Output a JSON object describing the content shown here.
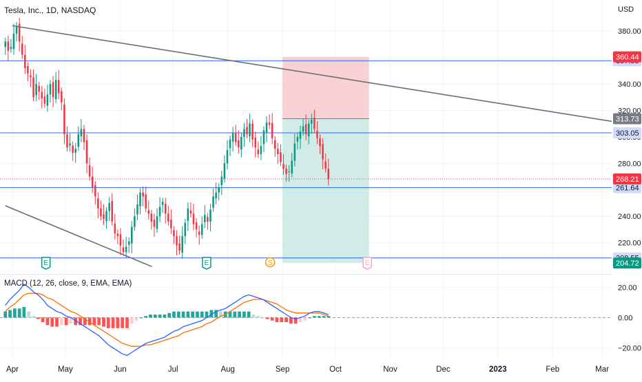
{
  "chart_data": {
    "type": "candlestick",
    "title": "Tesla, Inc., 1D, NASDAQ",
    "currency": "USD",
    "price_axis": {
      "ylim": [
        198,
        392
      ],
      "ticks": [
        220,
        240,
        260,
        280,
        300,
        320,
        340,
        360,
        380
      ],
      "tick_labels": [
        "220.00",
        "240.00",
        "260.00",
        "280.00",
        "300.00",
        "320.00",
        "340.00",
        "360.00",
        "380.00"
      ]
    },
    "time_axis": {
      "labels": [
        "Apr",
        "May",
        "Jun",
        "Jul",
        "Aug",
        "Sep",
        "Oct",
        "Nov",
        "Dec",
        "2023",
        "Feb",
        "Mar"
      ]
    },
    "horizontal_levels": [
      {
        "value": 357.55,
        "label": "357.55",
        "color": "#2962ff"
      },
      {
        "value": 303.05,
        "label": "303.05",
        "color": "#2962ff"
      },
      {
        "value": 261.64,
        "label": "261.64",
        "color": "#2962ff"
      },
      {
        "value": 208.55,
        "label": "208.55",
        "color": "#2962ff"
      }
    ],
    "price_badges": [
      {
        "value": 360.44,
        "label": "360.44",
        "color": "#f23645"
      },
      {
        "value": 313.73,
        "label": "313.73",
        "color": "#787b86"
      },
      {
        "value": 268.21,
        "label": "268.21",
        "color": "#f23645"
      },
      {
        "value": 204.72,
        "label": "204.72",
        "color": "#089981"
      }
    ],
    "last_price": 268.21,
    "short_position": {
      "entry": 313.73,
      "stop": 360.44,
      "target": 204.72,
      "from": "Sep 1",
      "to": "Oct 20",
      "stop_color": "#f7c9cd",
      "target_color": "#c9e9e3"
    },
    "trendlines": [
      {
        "from": [
          "Apr 1",
          384
        ],
        "to": [
          "Oct 20",
          341
        ]
      },
      {
        "from": [
          "Mar 28",
          248
        ],
        "to": [
          "Jun 19",
          202
        ]
      }
    ],
    "event_markers": [
      {
        "label": "E",
        "date": "Apr 20",
        "color": "#089981"
      },
      {
        "label": "E",
        "date": "Jul 20",
        "color": "#089981"
      },
      {
        "label": "S",
        "date": "Aug 25",
        "color": "#ff9800"
      },
      {
        "label": "E",
        "date": "Oct 19",
        "color": "#f7a5bd"
      }
    ],
    "up_color": "#089981",
    "down_color": "#f23645",
    "closes": [
      372,
      365,
      368,
      378,
      384,
      372,
      362,
      352,
      348,
      345,
      330,
      340,
      334,
      329,
      325,
      332,
      340,
      330,
      343,
      333,
      326,
      302,
      292,
      295,
      288,
      291,
      302,
      306,
      296,
      280,
      270,
      262,
      255,
      246,
      240,
      238,
      244,
      250,
      236,
      227,
      225,
      218,
      213,
      217,
      221,
      232,
      240,
      249,
      258,
      255,
      246,
      242,
      236,
      232,
      240,
      247,
      251,
      242,
      236,
      231,
      225,
      218,
      214,
      225,
      235,
      246,
      242,
      234,
      230,
      226,
      234,
      241,
      236,
      245,
      255,
      258,
      262,
      270,
      280,
      290,
      298,
      303,
      296,
      292,
      300,
      306,
      302,
      310,
      298,
      292,
      287,
      293,
      305,
      311,
      309,
      299,
      291,
      287,
      281,
      276,
      272,
      274,
      282,
      295,
      300,
      304,
      308,
      302,
      310,
      313,
      306,
      299,
      293,
      283,
      276,
      268
    ],
    "macd": {
      "ylim": [
        -28,
        27
      ],
      "ticks": [
        20,
        0,
        -20
      ],
      "tick_labels": [
        "20.00",
        "0.00",
        "−20.00"
      ],
      "params": "MACD (12, 26, close, 9, EMA, EMA)",
      "macd_line": [
        8,
        12,
        15,
        18,
        22,
        20,
        17,
        15,
        12,
        8,
        6,
        4,
        3,
        1,
        0,
        -2,
        -4,
        -6,
        -8,
        -10,
        -12,
        -15,
        -18,
        -20,
        -22,
        -24,
        -25,
        -23,
        -21,
        -19,
        -17,
        -16,
        -15,
        -14,
        -13,
        -11,
        -9,
        -8,
        -6,
        -5,
        -4,
        -3,
        -2,
        0,
        2,
        4,
        5,
        6,
        8,
        10,
        12,
        14,
        15,
        14,
        13,
        12,
        10,
        8,
        6,
        4,
        2,
        0,
        -1,
        0,
        1,
        3,
        4,
        4,
        3,
        2
      ],
      "signal_line": [
        4,
        7,
        9,
        12,
        15,
        16,
        16,
        16,
        15,
        13,
        12,
        10,
        8,
        6,
        4,
        3,
        1,
        -1,
        -3,
        -5,
        -7,
        -9,
        -11,
        -13,
        -15,
        -17,
        -18,
        -19,
        -19,
        -19,
        -18,
        -18,
        -17,
        -16,
        -15,
        -14,
        -13,
        -12,
        -10,
        -9,
        -8,
        -7,
        -6,
        -4,
        -3,
        -1,
        1,
        2,
        4,
        6,
        8,
        10,
        11,
        12,
        12,
        12,
        11,
        10,
        9,
        7,
        5,
        4,
        3,
        3,
        3,
        3,
        3,
        3,
        2,
        1
      ],
      "histogram": [
        4,
        5,
        6,
        6,
        7,
        4,
        1,
        -1,
        -3,
        -5,
        -6,
        -6,
        -5,
        -5,
        -4,
        -5,
        -5,
        -5,
        -5,
        -5,
        -5,
        -6,
        -7,
        -7,
        -7,
        -7,
        -7,
        -4,
        -2,
        0,
        1,
        2,
        2,
        2,
        2,
        3,
        4,
        4,
        4,
        4,
        4,
        4,
        4,
        4,
        5,
        5,
        4,
        4,
        4,
        4,
        4,
        4,
        4,
        2,
        1,
        0,
        -1,
        -2,
        -3,
        -3,
        -3,
        -4,
        -4,
        -3,
        -2,
        0,
        1,
        1,
        1,
        1
      ]
    }
  }
}
